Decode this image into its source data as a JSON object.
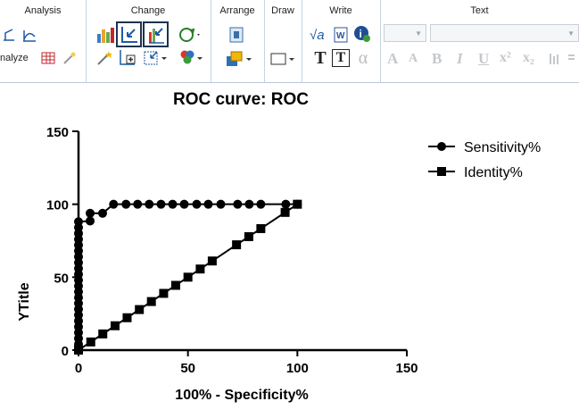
{
  "ribbon": {
    "analysis": {
      "title": "Analysis",
      "analyze_label": "nalyze",
      "icons": [
        "xy-analysis-icon",
        "curve-fit-icon",
        "table-analysis-icon",
        "magic-wand-icon"
      ]
    },
    "change": {
      "title": "Change",
      "icons": [
        "bar-chart-icon",
        "axis-in-icon",
        "color-bars-icon",
        "rotate-icon",
        "wizard-icon",
        "add-data-icon",
        "graph-options-icon",
        "color-scheme-icon"
      ]
    },
    "arrange": {
      "title": "Arrange",
      "icons": [
        "page-icon",
        "arrange-icon"
      ]
    },
    "draw": {
      "title": "Draw",
      "icons": [
        "rectangle-icon"
      ]
    },
    "write": {
      "title": "Write",
      "icons": [
        "equation-icon",
        "word-icon",
        "info-icon"
      ],
      "text_label": "T",
      "text_box_label": "T",
      "alpha_label": "α"
    },
    "text": {
      "title": "Text",
      "font_up": "A",
      "font_down": "A",
      "bold": "B",
      "italic": "I",
      "underline": "U",
      "superscript": "x²",
      "subscript": "x₂"
    }
  },
  "chart_data": {
    "type": "line",
    "title": "ROC curve: ROC",
    "xlabel": "100% - Specificity%",
    "ylabel": "YTitle",
    "xlim": [
      0,
      150
    ],
    "ylim": [
      0,
      150
    ],
    "xticks": [
      0,
      50,
      100,
      150
    ],
    "yticks": [
      0,
      50,
      100,
      150
    ],
    "legend_position": "top-right",
    "series": [
      {
        "name": "Sensitivity%",
        "marker": "circle",
        "color": "#000000",
        "points": [
          [
            0,
            0
          ],
          [
            0,
            4
          ],
          [
            0,
            8
          ],
          [
            0,
            12
          ],
          [
            0,
            16
          ],
          [
            0,
            20
          ],
          [
            0,
            24
          ],
          [
            0,
            28
          ],
          [
            0,
            32
          ],
          [
            0,
            36
          ],
          [
            0,
            40
          ],
          [
            0,
            44
          ],
          [
            0,
            48
          ],
          [
            0,
            52
          ],
          [
            0,
            56
          ],
          [
            0,
            60
          ],
          [
            0,
            64
          ],
          [
            0,
            68
          ],
          [
            0,
            72
          ],
          [
            0,
            76
          ],
          [
            0,
            80
          ],
          [
            0,
            84
          ],
          [
            0,
            88
          ],
          [
            5.3,
            88.5
          ],
          [
            5.3,
            93.8
          ],
          [
            11,
            93.8
          ],
          [
            16,
            100
          ],
          [
            21.7,
            100
          ],
          [
            27,
            100
          ],
          [
            32.3,
            100
          ],
          [
            37.7,
            100
          ],
          [
            43,
            100
          ],
          [
            48.3,
            100
          ],
          [
            54,
            100
          ],
          [
            59.3,
            100
          ],
          [
            65,
            100
          ],
          [
            72.7,
            100
          ],
          [
            78,
            100
          ],
          [
            83.3,
            100
          ],
          [
            94.7,
            100
          ],
          [
            100,
            100
          ]
        ]
      },
      {
        "name": "Identity%",
        "marker": "square",
        "color": "#000000",
        "points": [
          [
            0,
            0
          ],
          [
            5.6,
            5.6
          ],
          [
            11.1,
            11.1
          ],
          [
            16.7,
            16.7
          ],
          [
            22.2,
            22.2
          ],
          [
            27.8,
            27.8
          ],
          [
            33.3,
            33.3
          ],
          [
            38.9,
            38.9
          ],
          [
            44.4,
            44.4
          ],
          [
            50,
            50
          ],
          [
            55.6,
            55.6
          ],
          [
            61.1,
            61.1
          ],
          [
            72.2,
            72.2
          ],
          [
            77.8,
            77.8
          ],
          [
            83.3,
            83.3
          ],
          [
            94.4,
            94.4
          ],
          [
            100,
            100
          ]
        ]
      }
    ]
  }
}
